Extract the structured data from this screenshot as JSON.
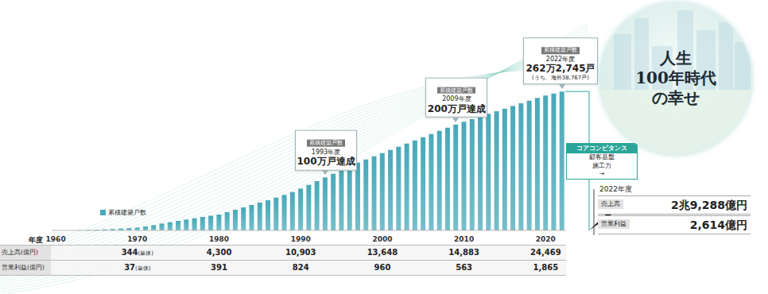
{
  "chart_data": {
    "type": "bar",
    "x_label": "年度",
    "categories": [
      "1960",
      null,
      null,
      null,
      null,
      null,
      null,
      null,
      null,
      null,
      "1970",
      null,
      null,
      null,
      null,
      null,
      null,
      null,
      null,
      null,
      "1980",
      null,
      null,
      null,
      null,
      null,
      null,
      null,
      null,
      null,
      "1990",
      null,
      null,
      null,
      null,
      null,
      null,
      null,
      null,
      null,
      "2000",
      null,
      null,
      null,
      null,
      null,
      null,
      null,
      null,
      null,
      "2010",
      null,
      null,
      null,
      null,
      null,
      null,
      null,
      null,
      null,
      "2020",
      null,
      null
    ],
    "series": [
      {
        "name": "累積建築戸数",
        "color": "#48a9b8",
        "values": [
          null,
          null,
          2000,
          5000,
          9000,
          14000,
          20000,
          27000,
          35000,
          44000,
          55000,
          75000,
          100000,
          130000,
          155000,
          180000,
          205000,
          230000,
          255000,
          278000,
          300000,
          345000,
          390000,
          435000,
          480000,
          525000,
          570000,
          620000,
          670000,
          725000,
          790000,
          860000,
          930000,
          1000000,
          1070000,
          1140000,
          1210000,
          1280000,
          1340000,
          1400000,
          1460000,
          1520000,
          1580000,
          1640000,
          1700000,
          1760000,
          1820000,
          1880000,
          1940000,
          2000000,
          2050000,
          2100000,
          2150000,
          2200000,
          2250000,
          2300000,
          2350000,
          2400000,
          2450000,
          2500000,
          2545000,
          2585000,
          2622745
        ]
      }
    ],
    "ylim": [
      0,
      2700000
    ],
    "tick_labels": "x",
    "annotations": [
      {
        "title": "累積建築戸数",
        "lines": [
          "1993年度",
          "100万戸達成"
        ]
      },
      {
        "title": "累積建築戸数",
        "lines": [
          "2009年度",
          "200万戸達成"
        ]
      },
      {
        "title": "累積建築戸数",
        "lines": [
          "2022年度",
          "262万2,745戸",
          "(うち、海外38,767戸)"
        ]
      }
    ]
  },
  "table": {
    "rows": [
      {
        "label": "売上高(億円)",
        "cells": [
          null,
          {
            "text": "344",
            "note": "(単体)"
          },
          {
            "text": "4,300"
          },
          {
            "text": "10,903"
          },
          {
            "text": "13,648"
          },
          {
            "text": "14,883"
          },
          {
            "text": "24,469"
          }
        ]
      },
      {
        "label": "営業利益(億円)",
        "cells": [
          null,
          {
            "text": "37",
            "note": "(単体)"
          },
          {
            "text": "391"
          },
          {
            "text": "824"
          },
          {
            "text": "960"
          },
          {
            "text": "563"
          },
          {
            "text": "1,865"
          }
        ]
      }
    ]
  },
  "panel": {
    "badge": "コアコンピタンス",
    "items": [
      "顧客基盤",
      "施工力",
      "→"
    ],
    "year": "2022年度",
    "rows": [
      {
        "label": "売上高",
        "value": "2兆9,288億円"
      },
      {
        "label": "営業利益",
        "value": "2,614億円"
      }
    ]
  },
  "circle_title": [
    "人生",
    "100年時代",
    "の幸せ"
  ]
}
